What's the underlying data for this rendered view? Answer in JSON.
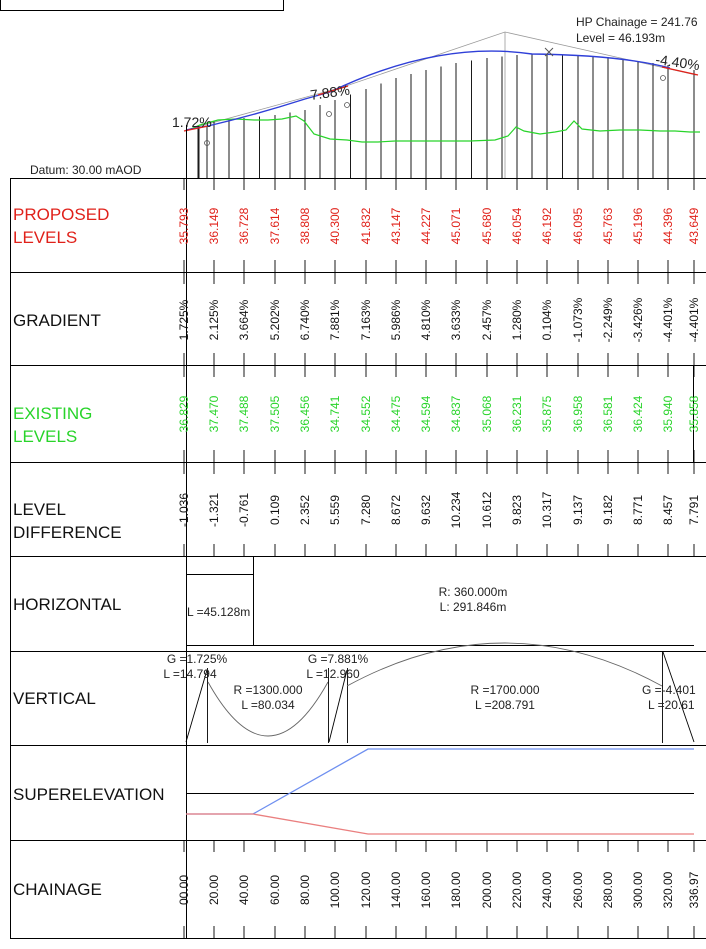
{
  "colors": {
    "proposed": "#e0211a",
    "existing": "#28d42a",
    "profile_line": "#2f3fd8",
    "super_blue": "#6e8ff0",
    "super_red": "#ea7f7f",
    "text": "#222222",
    "grid": "#000000"
  },
  "header": {
    "hp_line1": "HP Chainage = 241.76",
    "hp_line2": "Level = 46.193m",
    "datum": "Datum: 30.00 mAOD",
    "grade_labels": [
      "1.72%",
      "7.88%",
      "-4.40%"
    ]
  },
  "rows": {
    "proposed": [
      "PROPOSED",
      "LEVELS"
    ],
    "gradient": "GRADIENT",
    "existing": [
      "EXISTING",
      "LEVELS"
    ],
    "difference": [
      "LEVEL",
      "DIFFERENCE"
    ],
    "horizontal": "HORIZONTAL",
    "vertical": "VERTICAL",
    "superelevation": "SUPERELEVATION",
    "chainage": "CHAINAGE"
  },
  "table": {
    "proposed_levels": [
      "35.793",
      "36.149",
      "36.728",
      "37.614",
      "38.808",
      "40.300",
      "41.832",
      "43.147",
      "44.227",
      "45.071",
      "45.680",
      "46.054",
      "46.192",
      "46.095",
      "45.763",
      "45.196",
      "44.396",
      "43.649"
    ],
    "gradients": [
      "1.725%",
      "2.125%",
      "3.664%",
      "5.202%",
      "6.740%",
      "7.881%",
      "7.163%",
      "5.986%",
      "4.810%",
      "3.633%",
      "2.457%",
      "1.280%",
      "0.104%",
      "-1.073%",
      "-2.249%",
      "-3.426%",
      "-4.401%",
      "-4.401%"
    ],
    "existing_levels": [
      "36.829",
      "37.470",
      "37.488",
      "37.505",
      "36.456",
      "34.741",
      "34.552",
      "34.475",
      "34.594",
      "34.837",
      "35.068",
      "36.231",
      "35.875",
      "36.958",
      "36.581",
      "36.424",
      "35.940",
      "35.858"
    ],
    "level_differences": [
      "-1.036",
      "-1.321",
      "-0.761",
      "0.109",
      "2.352",
      "5.559",
      "7.280",
      "8.672",
      "9.632",
      "10.234",
      "10.612",
      "9.823",
      "10.317",
      "9.137",
      "9.182",
      "8.771",
      "8.457",
      "7.791"
    ],
    "chainages": [
      "00.00",
      "20.00",
      "40.00",
      "60.00",
      "80.00",
      "100.00",
      "120.00",
      "140.00",
      "160.00",
      "180.00",
      "200.00",
      "220.00",
      "240.00",
      "260.00",
      "280.00",
      "300.00",
      "320.00",
      "336.97"
    ]
  },
  "horizontal": {
    "straight": "L =45.128m",
    "curve_line1": "R: 360.000m",
    "curve_line2": "L: 291.846m"
  },
  "vertical": {
    "g1_line1": "G =1.725%",
    "g1_line2": "L =14.794",
    "sag_line1": "R =1300.000",
    "sag_line2": "L =80.034",
    "g2_line1": "G =7.881%",
    "g2_line2": "L =12.960",
    "crest_line1": "R =1700.000",
    "crest_line2": "L =208.791",
    "g3_line1": "G =-4.401",
    "g3_line2": "L =20.61"
  }
}
